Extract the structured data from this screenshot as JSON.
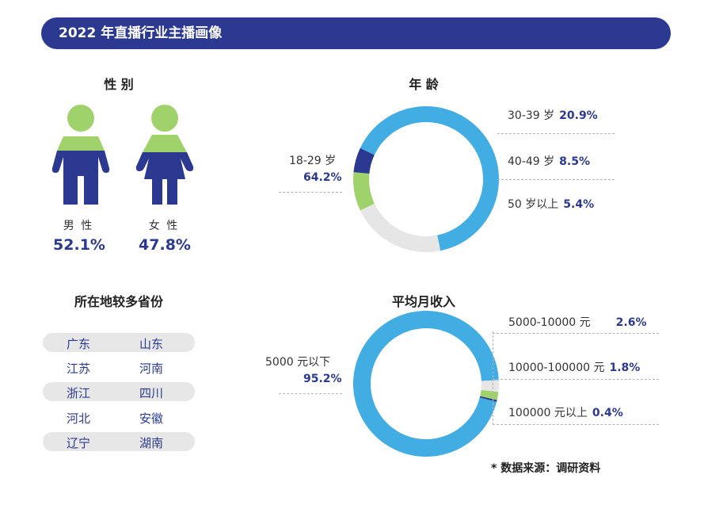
{
  "banner": {
    "title": "2022 年直播行业主播画像"
  },
  "gender": {
    "title": "性 别",
    "male_label": "男 性",
    "male_pct": "52.1%",
    "female_label": "女 性",
    "female_pct": "47.8%"
  },
  "provinces": {
    "title": "所在地较多省份",
    "rows": [
      [
        "广东",
        "山东"
      ],
      [
        "江苏",
        "河南"
      ],
      [
        "浙江",
        "四川"
      ],
      [
        "河北",
        "安徽"
      ],
      [
        "辽宁",
        "湖南"
      ]
    ]
  },
  "colors": {
    "navy": "#2b3990",
    "blue": "#41ade3",
    "green": "#9fd26b",
    "grey": "#e6e6e6"
  },
  "chart_data": [
    {
      "type": "pie",
      "title": "年 龄",
      "categories": [
        "18-29 岁",
        "30-39 岁",
        "40-49 岁",
        "50 岁以上"
      ],
      "values": [
        64.2,
        20.9,
        8.5,
        5.4
      ],
      "labels_pct": [
        "64.2%",
        "20.9%",
        "8.5%",
        "5.4%"
      ],
      "colors": [
        "#41ade3",
        "#e6e6e6",
        "#9fd26b",
        "#2b3990"
      ]
    },
    {
      "type": "pie",
      "title": "平均月收入",
      "categories": [
        "5000 元以下",
        "5000-10000 元",
        "10000-100000 元",
        "100000 元以上"
      ],
      "values": [
        95.2,
        2.6,
        1.8,
        0.4
      ],
      "labels_pct": [
        "95.2%",
        "2.6%",
        "1.8%",
        "0.4%"
      ],
      "colors": [
        "#41ade3",
        "#e6e6e6",
        "#9fd26b",
        "#2b3990"
      ]
    }
  ],
  "source": "* 数据来源：调研资料"
}
